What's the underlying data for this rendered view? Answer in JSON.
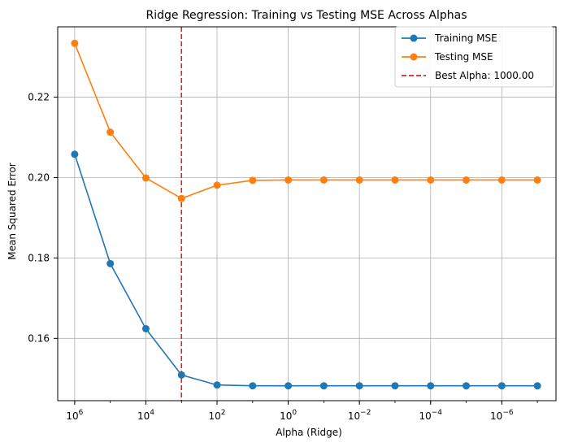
{
  "chart_data": {
    "type": "line",
    "title": "Ridge Regression: Training vs Testing MSE Across Alphas",
    "xlabel": "Alpha (Ridge)",
    "ylabel": "Mean Squared Error",
    "x_scale": "log",
    "x_direction": "descending",
    "x": [
      1000000,
      100000,
      10000,
      1000,
      100,
      10,
      1,
      0.1,
      0.01,
      0.001,
      0.0001,
      1e-05,
      1e-06,
      1e-07
    ],
    "xlim": [
      3000000,
      3e-08
    ],
    "ylim": [
      0.1445,
      0.2375
    ],
    "x_ticks": [
      {
        "value": 1000000,
        "base": "10",
        "exp": "6"
      },
      {
        "value": 10000,
        "base": "10",
        "exp": "4"
      },
      {
        "value": 100,
        "base": "10",
        "exp": "2"
      },
      {
        "value": 1,
        "base": "10",
        "exp": "0"
      },
      {
        "value": 0.01,
        "base": "10",
        "exp": "−2"
      },
      {
        "value": 0.0001,
        "base": "10",
        "exp": "−4"
      },
      {
        "value": 1e-06,
        "base": "10",
        "exp": "−6"
      }
    ],
    "y_ticks": [
      {
        "value": 0.16,
        "label": "0.16"
      },
      {
        "value": 0.18,
        "label": "0.18"
      },
      {
        "value": 0.2,
        "label": "0.20"
      },
      {
        "value": 0.22,
        "label": "0.22"
      }
    ],
    "series": [
      {
        "name": "Training MSE",
        "color": "#1f77b4",
        "values": [
          0.2058,
          0.1786,
          0.1624,
          0.1509,
          0.1484,
          0.1482,
          0.1482,
          0.1482,
          0.1482,
          0.1482,
          0.1482,
          0.1482,
          0.1482,
          0.1482
        ]
      },
      {
        "name": "Testing MSE",
        "color": "#ff7f0e",
        "values": [
          0.2334,
          0.2113,
          0.1999,
          0.1948,
          0.1981,
          0.1993,
          0.1994,
          0.1994,
          0.1994,
          0.1994,
          0.1994,
          0.1994,
          0.1994,
          0.1994
        ]
      }
    ],
    "best_alpha": {
      "value": 1000,
      "label": "Best Alpha: 1000.00",
      "color": "#d62728"
    },
    "grid": true,
    "legend_position": "top-right"
  }
}
